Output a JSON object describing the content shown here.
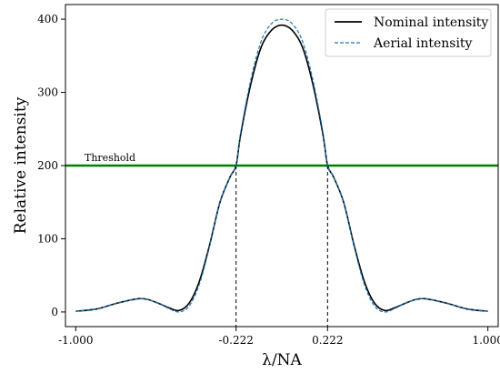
{
  "chart_data": {
    "type": "line",
    "title": "",
    "xlabel": "λ/NA",
    "ylabel": "Relative intensity",
    "xlim": [
      -1.05,
      1.05
    ],
    "ylim": [
      -20,
      420
    ],
    "x_ticks": [
      -1.0,
      -0.222,
      0.222,
      1.0
    ],
    "x_tick_labels": [
      "-1.000",
      "-0.222",
      "0.222",
      "1.000"
    ],
    "y_ticks": [
      0,
      100,
      200,
      300,
      400
    ],
    "y_tick_labels": [
      "0",
      "100",
      "200",
      "300",
      "400"
    ],
    "grid": false,
    "legend_position": "top-right",
    "series": [
      {
        "name": "Nominal intensity",
        "color": "#000000",
        "style": "solid",
        "x": [
          -1.0,
          -0.9,
          -0.8,
          -0.7,
          -0.65,
          -0.6,
          -0.55,
          -0.5,
          -0.45,
          -0.4,
          -0.35,
          -0.3,
          -0.25,
          -0.222,
          -0.2,
          -0.15,
          -0.1,
          -0.05,
          0.0,
          0.05,
          0.1,
          0.15,
          0.2,
          0.222,
          0.25,
          0.3,
          0.35,
          0.4,
          0.45,
          0.5,
          0.55,
          0.6,
          0.65,
          0.7,
          0.8,
          0.9,
          1.0
        ],
        "y": [
          1,
          4,
          12,
          18,
          17,
          12,
          6,
          2,
          12,
          42,
          92,
          150,
          185,
          200,
          242,
          312,
          362,
          385,
          392,
          385,
          362,
          312,
          242,
          200,
          185,
          150,
          92,
          42,
          12,
          2,
          6,
          12,
          17,
          18,
          12,
          4,
          1
        ]
      },
      {
        "name": "Aerial intensity",
        "color": "#1f77b4",
        "style": "dashed",
        "x": [
          -1.0,
          -0.9,
          -0.8,
          -0.7,
          -0.65,
          -0.6,
          -0.55,
          -0.5,
          -0.45,
          -0.4,
          -0.35,
          -0.3,
          -0.25,
          -0.222,
          -0.2,
          -0.15,
          -0.1,
          -0.05,
          0.0,
          0.05,
          0.1,
          0.15,
          0.2,
          0.222,
          0.25,
          0.3,
          0.35,
          0.4,
          0.45,
          0.5,
          0.55,
          0.6,
          0.65,
          0.7,
          0.8,
          0.9,
          1.0
        ],
        "y": [
          1,
          4,
          12,
          18,
          17,
          12,
          5,
          0,
          8,
          38,
          90,
          150,
          185,
          200,
          245,
          318,
          370,
          394,
          400,
          394,
          370,
          318,
          245,
          200,
          185,
          150,
          90,
          38,
          8,
          0,
          5,
          12,
          17,
          18,
          12,
          4,
          1
        ]
      }
    ],
    "threshold": {
      "label": "Threshold",
      "value": 200,
      "color": "#008000"
    },
    "crossings": [
      -0.222,
      0.222
    ]
  }
}
